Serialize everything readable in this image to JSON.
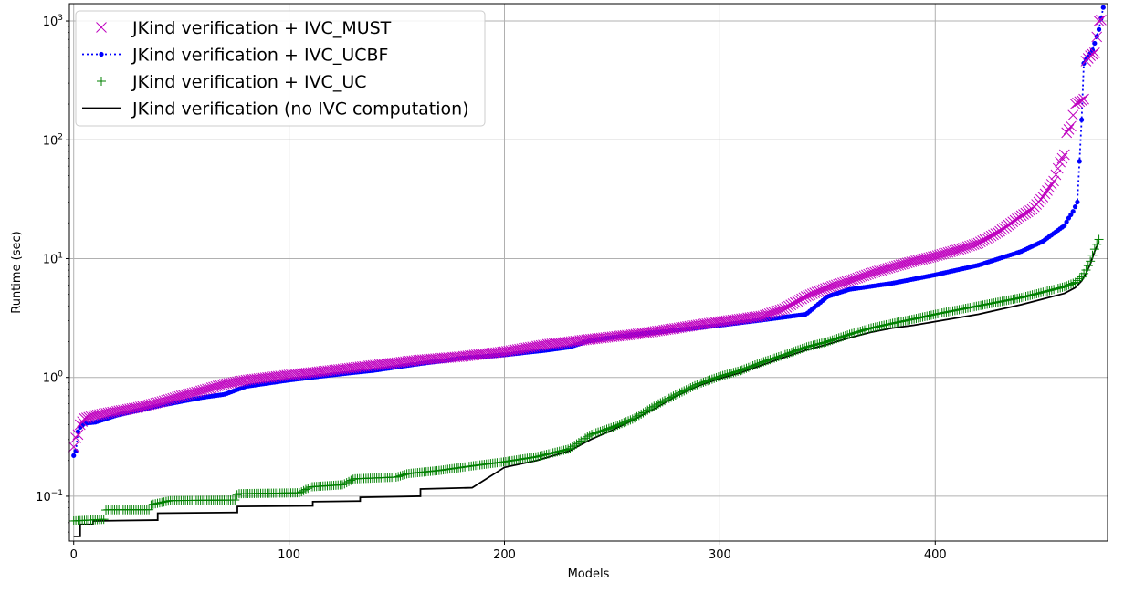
{
  "chart_data": {
    "type": "scatter",
    "title": "",
    "xlabel": "Models",
    "ylabel": "Runtime (sec)",
    "xlim": [
      -2,
      480
    ],
    "ylim": [
      0.042,
      1400
    ],
    "yscale": "log",
    "grid": true,
    "legend_position": "top-left",
    "x_ticks": [
      {
        "value": 0,
        "label": "0"
      },
      {
        "value": 100,
        "label": "100"
      },
      {
        "value": 200,
        "label": "200"
      },
      {
        "value": 300,
        "label": "300"
      },
      {
        "value": 400,
        "label": "400"
      }
    ],
    "y_ticks": [
      {
        "value": 0.1,
        "base": "10",
        "exp": "−1"
      },
      {
        "value": 1,
        "base": "10",
        "exp": "0"
      },
      {
        "value": 10,
        "base": "10",
        "exp": "1"
      },
      {
        "value": 100,
        "base": "10",
        "exp": "2"
      },
      {
        "value": 1000,
        "base": "10",
        "exp": "3"
      }
    ],
    "series": [
      {
        "name": "JKind verification + IVC_MUST",
        "marker": "x",
        "linestyle": "none",
        "color": "#bf00bf",
        "anchors": [
          [
            0,
            0.26
          ],
          [
            1,
            0.31
          ],
          [
            2,
            0.33
          ],
          [
            3,
            0.4
          ],
          [
            5,
            0.45
          ],
          [
            10,
            0.48
          ],
          [
            20,
            0.52
          ],
          [
            30,
            0.56
          ],
          [
            40,
            0.62
          ],
          [
            50,
            0.7
          ],
          [
            60,
            0.78
          ],
          [
            70,
            0.88
          ],
          [
            80,
            0.95
          ],
          [
            100,
            1.05
          ],
          [
            120,
            1.15
          ],
          [
            140,
            1.27
          ],
          [
            160,
            1.4
          ],
          [
            180,
            1.5
          ],
          [
            200,
            1.65
          ],
          [
            220,
            1.9
          ],
          [
            240,
            2.1
          ],
          [
            260,
            2.3
          ],
          [
            280,
            2.6
          ],
          [
            300,
            2.95
          ],
          [
            320,
            3.3
          ],
          [
            330,
            3.8
          ],
          [
            340,
            4.8
          ],
          [
            350,
            5.7
          ],
          [
            360,
            6.5
          ],
          [
            370,
            7.5
          ],
          [
            380,
            8.5
          ],
          [
            390,
            9.5
          ],
          [
            400,
            10.5
          ],
          [
            410,
            11.8
          ],
          [
            420,
            13.5
          ],
          [
            430,
            17.0
          ],
          [
            440,
            23.0
          ],
          [
            445,
            26.0
          ],
          [
            450,
            33.0
          ],
          [
            455,
            45.0
          ],
          [
            458,
            65.0
          ],
          [
            460,
            75.0
          ],
          [
            461,
            115.0
          ],
          [
            463,
            130.0
          ],
          [
            465,
            200.0
          ],
          [
            467,
            210.0
          ],
          [
            469,
            220.0
          ],
          [
            470,
            460.0
          ],
          [
            472,
            510.0
          ],
          [
            474,
            540.0
          ],
          [
            476,
            1000.0
          ],
          [
            477,
            1020.0
          ]
        ]
      },
      {
        "name": "JKind verification + IVC_UCBF",
        "marker": "o",
        "linestyle": "dotted",
        "color": "#0000ff",
        "anchors": [
          [
            0,
            0.22
          ],
          [
            1,
            0.24
          ],
          [
            2,
            0.35
          ],
          [
            3,
            0.38
          ],
          [
            5,
            0.41
          ],
          [
            10,
            0.42
          ],
          [
            20,
            0.48
          ],
          [
            40,
            0.58
          ],
          [
            60,
            0.68
          ],
          [
            70,
            0.72
          ],
          [
            80,
            0.84
          ],
          [
            100,
            0.95
          ],
          [
            120,
            1.05
          ],
          [
            140,
            1.15
          ],
          [
            160,
            1.3
          ],
          [
            180,
            1.45
          ],
          [
            200,
            1.55
          ],
          [
            220,
            1.7
          ],
          [
            230,
            1.8
          ],
          [
            240,
            2.05
          ],
          [
            260,
            2.3
          ],
          [
            280,
            2.5
          ],
          [
            300,
            2.75
          ],
          [
            320,
            3.05
          ],
          [
            340,
            3.4
          ],
          [
            350,
            4.8
          ],
          [
            360,
            5.5
          ],
          [
            380,
            6.2
          ],
          [
            400,
            7.3
          ],
          [
            420,
            8.8
          ],
          [
            440,
            11.5
          ],
          [
            450,
            14.0
          ],
          [
            460,
            19.0
          ],
          [
            462,
            22.0
          ],
          [
            464,
            25.0
          ],
          [
            466,
            30.0
          ],
          [
            468,
            150.0
          ],
          [
            469,
            450.0
          ],
          [
            471,
            500.0
          ],
          [
            473,
            570.0
          ],
          [
            474,
            650.0
          ],
          [
            476,
            850.0
          ],
          [
            478,
            1300.0
          ]
        ]
      },
      {
        "name": "JKind verification + IVC_UC",
        "marker": "+",
        "linestyle": "none",
        "color": "#008000",
        "anchors": [
          [
            0,
            0.062
          ],
          [
            14,
            0.064
          ],
          [
            15,
            0.077
          ],
          [
            35,
            0.077
          ],
          [
            36,
            0.085
          ],
          [
            45,
            0.092
          ],
          [
            75,
            0.093
          ],
          [
            76,
            0.105
          ],
          [
            105,
            0.107
          ],
          [
            110,
            0.12
          ],
          [
            125,
            0.125
          ],
          [
            130,
            0.14
          ],
          [
            150,
            0.145
          ],
          [
            155,
            0.155
          ],
          [
            170,
            0.165
          ],
          [
            185,
            0.18
          ],
          [
            200,
            0.195
          ],
          [
            215,
            0.215
          ],
          [
            230,
            0.25
          ],
          [
            240,
            0.33
          ],
          [
            250,
            0.38
          ],
          [
            260,
            0.45
          ],
          [
            270,
            0.58
          ],
          [
            280,
            0.72
          ],
          [
            290,
            0.88
          ],
          [
            300,
            1.02
          ],
          [
            310,
            1.15
          ],
          [
            320,
            1.35
          ],
          [
            330,
            1.55
          ],
          [
            340,
            1.8
          ],
          [
            350,
            2.0
          ],
          [
            360,
            2.3
          ],
          [
            370,
            2.6
          ],
          [
            380,
            2.85
          ],
          [
            390,
            3.1
          ],
          [
            400,
            3.4
          ],
          [
            420,
            4.0
          ],
          [
            440,
            4.7
          ],
          [
            460,
            5.8
          ],
          [
            465,
            6.3
          ],
          [
            468,
            7.0
          ],
          [
            470,
            8.0
          ],
          [
            472,
            9.5
          ],
          [
            474,
            12.0
          ],
          [
            476,
            14.5
          ]
        ]
      },
      {
        "name": "JKind verification (no IVC computation)",
        "marker": "none",
        "linestyle": "solid",
        "color": "#000000",
        "anchors": [
          [
            0,
            0.046
          ],
          [
            2,
            0.046
          ],
          [
            3,
            0.058
          ],
          [
            8,
            0.058
          ],
          [
            9,
            0.062
          ],
          [
            38,
            0.063
          ],
          [
            39,
            0.072
          ],
          [
            75,
            0.073
          ],
          [
            76,
            0.082
          ],
          [
            110,
            0.083
          ],
          [
            111,
            0.09
          ],
          [
            132,
            0.091
          ],
          [
            133,
            0.098
          ],
          [
            160,
            0.1
          ],
          [
            161,
            0.115
          ],
          [
            185,
            0.118
          ],
          [
            200,
            0.175
          ],
          [
            215,
            0.2
          ],
          [
            230,
            0.24
          ],
          [
            240,
            0.3
          ],
          [
            250,
            0.36
          ],
          [
            260,
            0.44
          ],
          [
            270,
            0.55
          ],
          [
            280,
            0.7
          ],
          [
            290,
            0.85
          ],
          [
            300,
            0.98
          ],
          [
            310,
            1.1
          ],
          [
            320,
            1.28
          ],
          [
            330,
            1.48
          ],
          [
            340,
            1.7
          ],
          [
            350,
            1.9
          ],
          [
            360,
            2.15
          ],
          [
            370,
            2.4
          ],
          [
            380,
            2.6
          ],
          [
            390,
            2.75
          ],
          [
            400,
            2.95
          ],
          [
            420,
            3.4
          ],
          [
            440,
            4.1
          ],
          [
            460,
            5.1
          ],
          [
            465,
            5.7
          ],
          [
            468,
            6.5
          ],
          [
            470,
            7.5
          ],
          [
            472,
            9.0
          ],
          [
            474,
            11.5
          ],
          [
            476,
            14.0
          ]
        ]
      }
    ]
  }
}
